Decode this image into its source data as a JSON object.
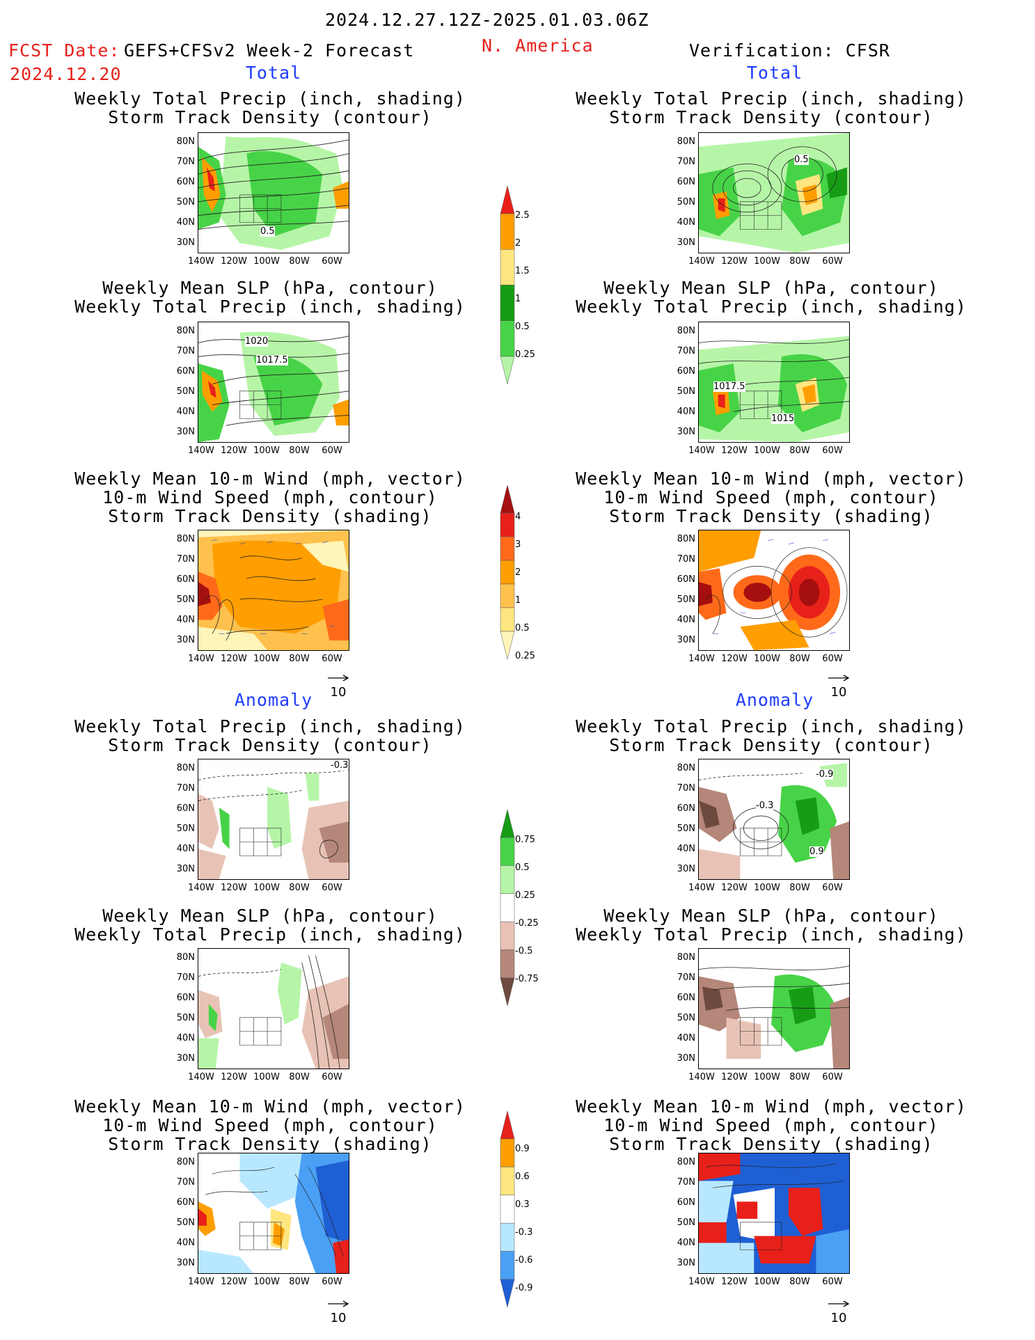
{
  "header": {
    "date_range": "2024.12.27.12Z-2025.01.03.06Z",
    "fcst_date_label": "FCST Date:",
    "fcst_date": "2024.12.20",
    "forecast_name": "GEFS+CFSv2 Week-2 Forecast",
    "region": "N. America",
    "verification": "Verification: CFSR"
  },
  "sections": {
    "total": "Total",
    "anomaly": "Anomaly"
  },
  "panel_titles": {
    "precip_storm": "Weekly Total Precip (inch, shading)\nStorm Track Density (contour)",
    "slp_precip": "Weekly Mean SLP (hPa, contour)\nWeekly Total Precip (inch, shading)",
    "wind_storm": "Weekly Mean 10-m Wind (mph, vector)\n10-m Wind Speed (mph, contour)\nStorm Track Density (shading)"
  },
  "axes": {
    "lat_ticks": [
      "80N",
      "70N",
      "60N",
      "50N",
      "40N",
      "30N"
    ],
    "lon_ticks": [
      "140W",
      "120W",
      "100W",
      "80W",
      "60W"
    ]
  },
  "vector_ref": "10",
  "contour_labels": {
    "p1_left": "0.5",
    "p1_right": "0.5",
    "p2_left_a": "1020",
    "p2_left_b": "1017.5",
    "p2_right_a": "1017.5",
    "p2_right_b": "1015",
    "p4_left": "-0.3",
    "p4_right_a": "-0.9",
    "p4_right_b": "-0.3",
    "p4_right_c": "0.9"
  },
  "colorbars": {
    "precip_total": {
      "labels": [
        "2.5",
        "2",
        "1.5",
        "1",
        "0.5",
        "0.25"
      ],
      "colors": [
        "#e8201a",
        "#ff9e00",
        "#ffe680",
        "#179c15",
        "#47d347",
        "#b6f5a8"
      ]
    },
    "storm_total": {
      "labels": [
        "4",
        "3",
        "2",
        "1",
        "0.5",
        "0.25"
      ],
      "colors": [
        "#a50f0f",
        "#e8201a",
        "#ff6a1a",
        "#ff9e00",
        "#ffc14d",
        "#ffe680",
        "#fff5b8"
      ]
    },
    "precip_anom": {
      "labels": [
        "0.75",
        "0.5",
        "0.25",
        "-0.25",
        "-0.5",
        "-0.75"
      ],
      "colors": [
        "#179c15",
        "#47d347",
        "#b6f5a8",
        "#ffffff",
        "#e8c3b5",
        "#b5877a",
        "#6e4a3e"
      ]
    },
    "storm_anom": {
      "labels": [
        "0.9",
        "0.6",
        "0.3",
        "-0.3",
        "-0.6",
        "-0.9"
      ],
      "colors": [
        "#e8201a",
        "#ff9e00",
        "#ffe680",
        "#ffffff",
        "#b8e8ff",
        "#4aa0f5",
        "#1f5fd4"
      ]
    }
  }
}
